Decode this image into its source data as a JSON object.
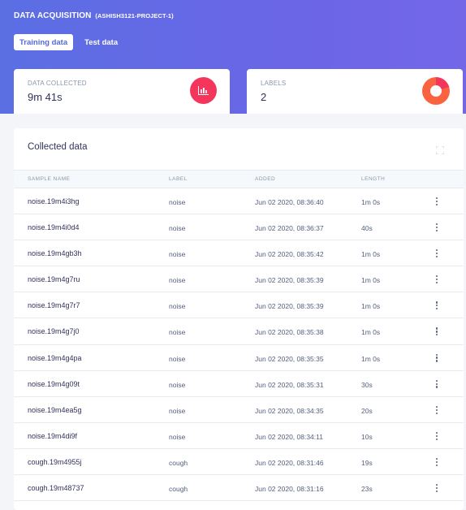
{
  "header": {
    "title": "DATA ACQUISITION",
    "project": "(ASHISH3121-PROJECT-1)",
    "tabs": [
      {
        "label": "Training data",
        "active": true
      },
      {
        "label": "Test data",
        "active": false
      }
    ]
  },
  "stats": {
    "collected": {
      "label": "DATA COLLECTED",
      "value": "9m 41s",
      "icon": "bar-chart-icon",
      "color": "#f5365c"
    },
    "labels": {
      "label": "LABELS",
      "value": "2",
      "icon": "pie-chart-icon",
      "colors": [
        "#fb6340",
        "#f5365c"
      ]
    }
  },
  "table": {
    "title": "Collected data",
    "columns": [
      "SAMPLE NAME",
      "LABEL",
      "ADDED",
      "LENGTH"
    ],
    "rows": [
      {
        "name": "noise.19m4i3hg",
        "label": "noise",
        "added": "Jun 02 2020, 08:36:40",
        "length": "1m 0s"
      },
      {
        "name": "noise.19m4i0d4",
        "label": "noise",
        "added": "Jun 02 2020, 08:36:37",
        "length": "40s"
      },
      {
        "name": "noise.19m4gb3h",
        "label": "noise",
        "added": "Jun 02 2020, 08:35:42",
        "length": "1m 0s"
      },
      {
        "name": "noise.19m4g7ru",
        "label": "noise",
        "added": "Jun 02 2020, 08:35:39",
        "length": "1m 0s"
      },
      {
        "name": "noise.19m4g7r7",
        "label": "noise",
        "added": "Jun 02 2020, 08:35:39",
        "length": "1m 0s"
      },
      {
        "name": "noise.19m4g7j0",
        "label": "noise",
        "added": "Jun 02 2020, 08:35:38",
        "length": "1m 0s"
      },
      {
        "name": "noise.19m4g4pa",
        "label": "noise",
        "added": "Jun 02 2020, 08:35:35",
        "length": "1m 0s"
      },
      {
        "name": "noise.19m4g09t",
        "label": "noise",
        "added": "Jun 02 2020, 08:35:31",
        "length": "30s"
      },
      {
        "name": "noise.19m4ea5g",
        "label": "noise",
        "added": "Jun 02 2020, 08:34:35",
        "length": "20s"
      },
      {
        "name": "noise.19m4di9f",
        "label": "noise",
        "added": "Jun 02 2020, 08:34:11",
        "length": "10s"
      },
      {
        "name": "cough.19m4955j",
        "label": "cough",
        "added": "Jun 02 2020, 08:31:46",
        "length": "19s"
      },
      {
        "name": "cough.19m48737",
        "label": "cough",
        "added": "Jun 02 2020, 08:31:16",
        "length": "23s"
      }
    ]
  }
}
